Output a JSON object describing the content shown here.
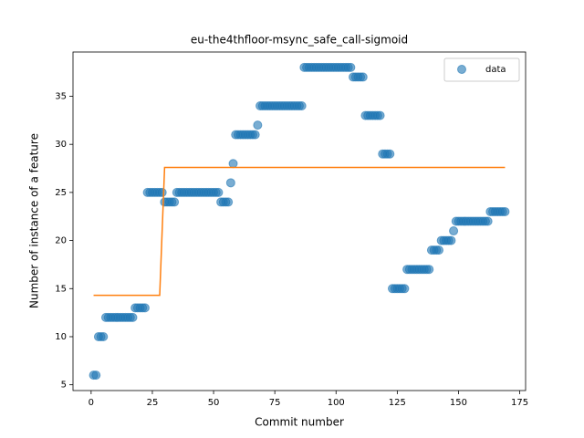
{
  "chart_data": {
    "type": "scatter",
    "title": "eu-the4thfloor-msync_safe_call-sigmoid",
    "xlabel": "Commit number",
    "ylabel": "Number of instance of a feature",
    "xlim": [
      -7.4,
      177.4
    ],
    "ylim": [
      4.4,
      39.6
    ],
    "xticks": [
      0,
      25,
      50,
      75,
      100,
      125,
      150,
      175
    ],
    "yticks": [
      5,
      10,
      15,
      20,
      25,
      30,
      35
    ],
    "legend": "upper right",
    "series": [
      {
        "name": "data",
        "type": "scatter",
        "color": "#1f77b4",
        "x": [
          1,
          2,
          3,
          4,
          5,
          6,
          7,
          8,
          9,
          10,
          11,
          12,
          13,
          14,
          15,
          16,
          17,
          18,
          19,
          20,
          21,
          22,
          23,
          24,
          25,
          26,
          27,
          28,
          29,
          30,
          31,
          32,
          33,
          34,
          35,
          36,
          37,
          38,
          39,
          40,
          41,
          42,
          43,
          44,
          45,
          46,
          47,
          48,
          49,
          50,
          51,
          52,
          53,
          54,
          55,
          56,
          57,
          58,
          59,
          60,
          61,
          62,
          63,
          64,
          65,
          66,
          67,
          68,
          69,
          70,
          71,
          72,
          73,
          74,
          75,
          76,
          77,
          78,
          79,
          80,
          81,
          82,
          83,
          84,
          85,
          86,
          87,
          88,
          89,
          90,
          91,
          92,
          93,
          94,
          95,
          96,
          97,
          98,
          99,
          100,
          101,
          102,
          103,
          104,
          105,
          106,
          107,
          108,
          109,
          110,
          111,
          112,
          113,
          114,
          115,
          116,
          117,
          118,
          119,
          120,
          121,
          122,
          123,
          124,
          125,
          126,
          127,
          128,
          129,
          130,
          131,
          132,
          133,
          134,
          135,
          136,
          137,
          138,
          139,
          140,
          141,
          142,
          143,
          144,
          145,
          146,
          147,
          148,
          149,
          150,
          151,
          152,
          153,
          154,
          155,
          156,
          157,
          158,
          159,
          160,
          161,
          162,
          163,
          164,
          165,
          166,
          167,
          168,
          169
        ],
        "values": [
          6,
          6,
          10,
          10,
          10,
          12,
          12,
          12,
          12,
          12,
          12,
          12,
          12,
          12,
          12,
          12,
          12,
          13,
          13,
          13,
          13,
          13,
          25,
          25,
          25,
          25,
          25,
          25,
          25,
          24,
          24,
          24,
          24,
          24,
          25,
          25,
          25,
          25,
          25,
          25,
          25,
          25,
          25,
          25,
          25,
          25,
          25,
          25,
          25,
          25,
          25,
          25,
          24,
          24,
          24,
          24,
          26,
          28,
          31,
          31,
          31,
          31,
          31,
          31,
          31,
          31,
          31,
          32,
          34,
          34,
          34,
          34,
          34,
          34,
          34,
          34,
          34,
          34,
          34,
          34,
          34,
          34,
          34,
          34,
          34,
          34,
          38,
          38,
          38,
          38,
          38,
          38,
          38,
          38,
          38,
          38,
          38,
          38,
          38,
          38,
          38,
          38,
          38,
          38,
          38,
          38,
          37,
          37,
          37,
          37,
          37,
          33,
          33,
          33,
          33,
          33,
          33,
          33,
          29,
          29,
          29,
          29,
          15,
          15,
          15,
          15,
          15,
          15,
          17,
          17,
          17,
          17,
          17,
          17,
          17,
          17,
          17,
          17,
          19,
          19,
          19,
          19,
          20,
          20,
          20,
          20,
          20,
          21,
          22,
          22,
          22,
          22,
          22,
          22,
          22,
          22,
          22,
          22,
          22,
          22,
          22,
          22,
          23,
          23,
          23,
          23,
          23,
          23,
          23
        ]
      },
      {
        "type": "line",
        "color": "#ff7f0e",
        "x": [
          1,
          28,
          29,
          30,
          169
        ],
        "values": [
          14.3,
          14.3,
          21,
          27.6,
          27.6
        ]
      }
    ]
  }
}
